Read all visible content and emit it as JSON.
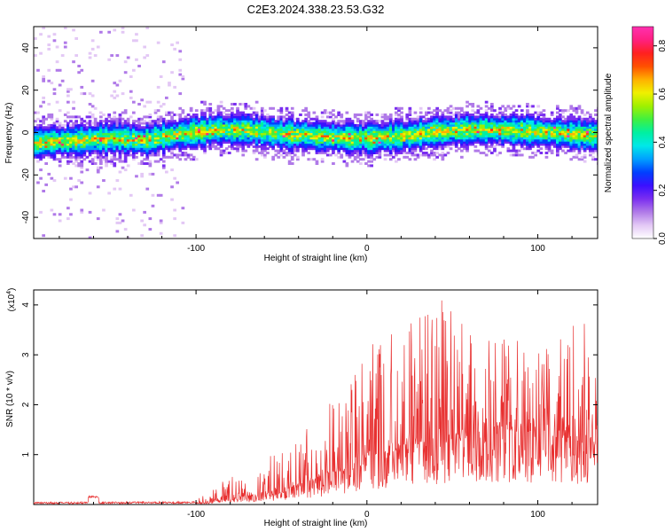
{
  "title": "C2E3.2024.338.23.53.G32",
  "colors": {
    "snr_line": "#e83030",
    "colormap": [
      "#ffffff",
      "#e3c8f5",
      "#b07ae8",
      "#7a2ef0",
      "#3a10ff",
      "#0040ff",
      "#00a0ff",
      "#00e8e8",
      "#00f0a0",
      "#40f040",
      "#a0f000",
      "#f0f000",
      "#ffb000",
      "#ff5000",
      "#ff2020",
      "#ff2080",
      "#ff30b0"
    ]
  },
  "chart_data": [
    {
      "type": "heatmap",
      "xlabel": "Height of straight line (km)",
      "ylabel": "Frequency (Hz)",
      "xlim": [
        -195,
        135
      ],
      "ylim": [
        -50,
        50
      ],
      "xticks": [
        -100,
        0,
        100
      ],
      "yticks": [
        -40,
        -20,
        0,
        20,
        40
      ],
      "colorbar": {
        "label": "Normalized spectral amplitude",
        "range": [
          0.0,
          0.88
        ],
        "ticks": [
          0.0,
          0.2,
          0.4,
          0.6,
          0.8
        ]
      },
      "band_center": [
        [
          -195,
          -5
        ],
        [
          -170,
          -4
        ],
        [
          -150,
          -3
        ],
        [
          -130,
          -4
        ],
        [
          -110,
          -1
        ],
        [
          -90,
          1
        ],
        [
          -70,
          1
        ],
        [
          -50,
          -1
        ],
        [
          -30,
          -2
        ],
        [
          -10,
          -3
        ],
        [
          0,
          -3
        ],
        [
          20,
          -2
        ],
        [
          40,
          0
        ],
        [
          60,
          1
        ],
        [
          80,
          1
        ],
        [
          100,
          0
        ],
        [
          120,
          -1
        ],
        [
          135,
          -2
        ]
      ],
      "band_halfwidth_hz": 6,
      "grid": false
    },
    {
      "type": "line",
      "xlabel": "Height of straight line (km)",
      "ylabel": "SNR (10 * v/v)",
      "yscale_label": "(x10",
      "yscale_exp": "4",
      "xlim": [
        -195,
        135
      ],
      "ylim": [
        0,
        4.3
      ],
      "xticks": [
        -100,
        0,
        100
      ],
      "yticks": [
        1,
        2,
        3,
        4
      ],
      "series": [
        {
          "envelope": [
            [
              -195,
              0.05
            ],
            [
              -170,
              0.08
            ],
            [
              -160,
              0.18
            ],
            [
              -150,
              0.09
            ],
            [
              -120,
              0.08
            ],
            [
              -100,
              0.1
            ],
            [
              -90,
              0.3
            ],
            [
              -80,
              0.6
            ],
            [
              -75,
              0.7
            ],
            [
              -70,
              0.4
            ],
            [
              -60,
              0.9
            ],
            [
              -40,
              1.4
            ],
            [
              -20,
              2.1
            ],
            [
              -10,
              3.0
            ],
            [
              0,
              3.2
            ],
            [
              20,
              3.7
            ],
            [
              40,
              3.9
            ],
            [
              45,
              4.2
            ],
            [
              60,
              3.5
            ],
            [
              80,
              3.4
            ],
            [
              100,
              3.3
            ],
            [
              120,
              3.8
            ],
            [
              125,
              4.0
            ],
            [
              135,
              3.2
            ]
          ],
          "baseline": [
            [
              -195,
              0.01
            ],
            [
              -100,
              0.02
            ],
            [
              -80,
              0.1
            ],
            [
              -60,
              0.2
            ],
            [
              -40,
              0.35
            ],
            [
              -20,
              0.6
            ],
            [
              0,
              0.9
            ],
            [
              20,
              1.1
            ],
            [
              40,
              1.3
            ],
            [
              60,
              1.4
            ],
            [
              80,
              1.5
            ],
            [
              100,
              1.4
            ],
            [
              120,
              1.3
            ],
            [
              135,
              1.2
            ]
          ]
        }
      ],
      "grid": false
    }
  ]
}
